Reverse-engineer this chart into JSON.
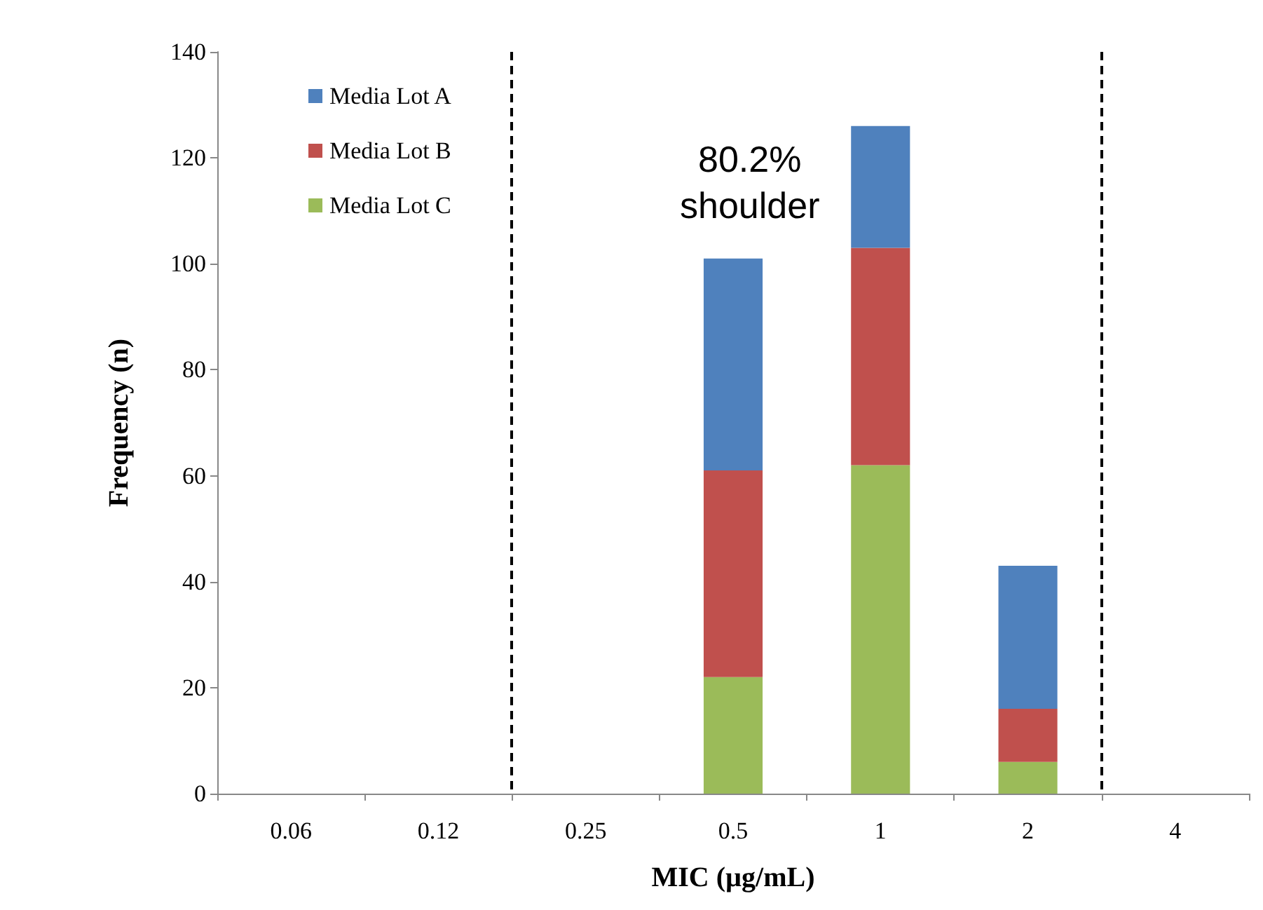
{
  "chart_data": {
    "type": "bar",
    "xlabel": "MIC (µg/mL)",
    "ylabel": "Frequency (n)",
    "categories": [
      "0.06",
      "0.12",
      "0.25",
      "0.5",
      "1",
      "2",
      "4"
    ],
    "stacked": true,
    "series": [
      {
        "name": "Media Lot C",
        "color": "#9bbb59",
        "values": [
          0,
          0,
          0,
          22,
          62,
          6,
          0
        ]
      },
      {
        "name": "Media Lot B",
        "color": "#c0504d",
        "values": [
          0,
          0,
          0,
          39,
          41,
          10,
          0
        ]
      },
      {
        "name": "Media Lot A",
        "color": "#4f81bd",
        "values": [
          0,
          0,
          0,
          40,
          23,
          27,
          0
        ]
      }
    ],
    "ylim": [
      0,
      140
    ],
    "yticks": [
      0,
      20,
      40,
      60,
      80,
      100,
      120,
      140
    ],
    "grid": false,
    "legend": "top left",
    "annotations": [
      "80.2%\nshoulder"
    ]
  }
}
